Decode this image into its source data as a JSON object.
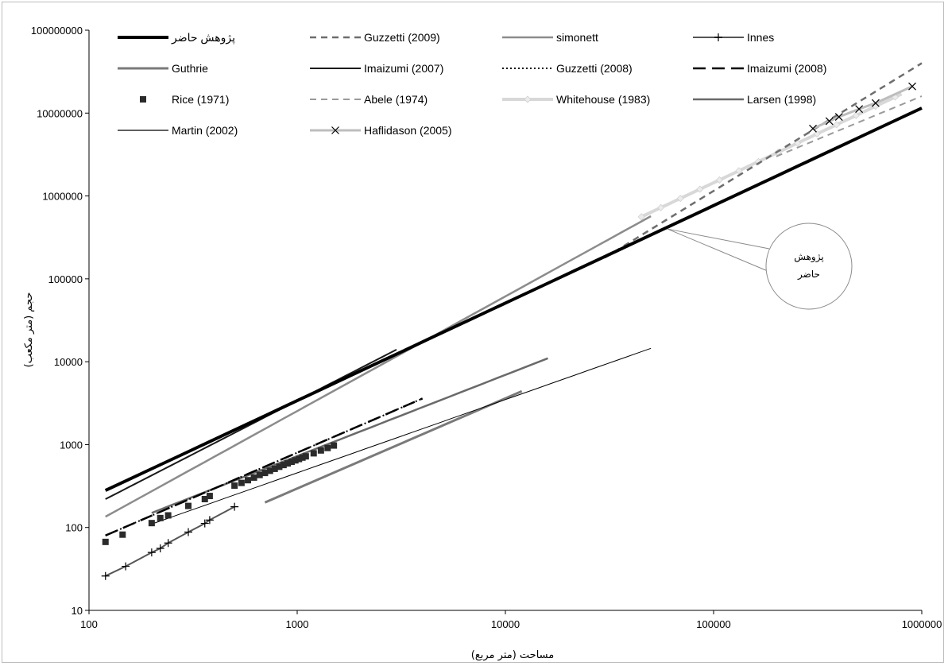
{
  "chart_data": {
    "type": "line",
    "x_scale": "log",
    "y_scale": "log",
    "xlim": [
      100,
      1000000
    ],
    "ylim": [
      10,
      100000000
    ],
    "xlabel": "مساحت (متر مربع)",
    "ylabel": "حجم (متر مکعب)",
    "x_ticks": [
      "100",
      "1000",
      "10000",
      "100000",
      "1000000"
    ],
    "y_ticks": [
      "10",
      "100",
      "1000",
      "10000",
      "100000",
      "1000000",
      "10000000",
      "100000000"
    ],
    "grid": false,
    "legend_position": "top",
    "annotation": {
      "text_line1": "پژوهش",
      "text_line2": "حاضر",
      "points_to": "پژوهش حاضر",
      "at": [
        60000,
        400000
      ]
    },
    "series": [
      {
        "name": "پژوهش حاضر",
        "color": "#000000",
        "style": "solid",
        "width": 4,
        "marker": "none",
        "x_range": [
          120,
          1000000
        ],
        "y_at_range": [
          280,
          11500000
        ]
      },
      {
        "name": "Guzzetti (2009)",
        "color": "#6e6e6e",
        "style": "dashed",
        "width": 2.5,
        "marker": "none",
        "x_range": [
          30000,
          1000000
        ],
        "y_at_range": [
          180000,
          40000000
        ]
      },
      {
        "name": "simonett",
        "color": "#8c8c8c",
        "style": "solid",
        "width": 2.5,
        "marker": "none",
        "x_range": [
          120,
          50000
        ],
        "y_at_range": [
          135,
          570000
        ]
      },
      {
        "name": "Innes",
        "color": "#555555",
        "style": "solid",
        "width": 2,
        "marker": "plus",
        "points": [
          [
            120,
            26
          ],
          [
            150,
            34
          ],
          [
            200,
            50
          ],
          [
            220,
            56
          ],
          [
            240,
            65
          ],
          [
            300,
            88
          ],
          [
            360,
            112
          ],
          [
            380,
            123
          ],
          [
            500,
            178
          ]
        ]
      },
      {
        "name": "Guthrie",
        "color": "#7a7a7a",
        "style": "solid",
        "width": 3,
        "marker": "none",
        "x_range": [
          700,
          12000
        ],
        "y_at_range": [
          200,
          4400
        ]
      },
      {
        "name": "Imaizumi (2007)",
        "color": "#1a1a1a",
        "style": "solid",
        "width": 2,
        "marker": "none",
        "x_range": [
          120,
          3000
        ],
        "y_at_range": [
          220,
          14000
        ]
      },
      {
        "name": "Guzzetti (2008)",
        "color": "#000000",
        "style": "dotted",
        "width": 2,
        "marker": "none",
        "x_range": [
          120,
          4000
        ],
        "y_at_range": [
          80,
          3600
        ]
      },
      {
        "name": "Imaizumi (2008)",
        "color": "#000000",
        "style": "longdash",
        "width": 2.5,
        "marker": "none",
        "x_range": [
          120,
          4000
        ],
        "y_at_range": [
          80,
          3600
        ]
      },
      {
        "name": "Rice (1971)",
        "color": "#2b2b2b",
        "style": "none",
        "width": 0,
        "marker": "square",
        "points": [
          [
            120,
            67
          ],
          [
            145,
            82
          ],
          [
            200,
            113
          ],
          [
            220,
            130
          ],
          [
            240,
            140
          ],
          [
            300,
            182
          ],
          [
            360,
            220
          ],
          [
            380,
            240
          ],
          [
            500,
            320
          ],
          [
            540,
            345
          ],
          [
            580,
            372
          ],
          [
            620,
            400
          ],
          [
            660,
            430
          ],
          [
            700,
            455
          ],
          [
            740,
            483
          ],
          [
            780,
            510
          ],
          [
            820,
            540
          ],
          [
            860,
            567
          ],
          [
            900,
            593
          ],
          [
            940,
            620
          ],
          [
            980,
            645
          ],
          [
            1020,
            670
          ],
          [
            1060,
            697
          ],
          [
            1100,
            722
          ],
          [
            1200,
            785
          ],
          [
            1300,
            850
          ],
          [
            1400,
            910
          ],
          [
            1500,
            975
          ]
        ]
      },
      {
        "name": "Abele (1974)",
        "color": "#9a9a9a",
        "style": "dashed",
        "width": 2,
        "marker": "none",
        "x_range": [
          200000,
          1000000
        ],
        "y_at_range": [
          3000000,
          16000000
        ]
      },
      {
        "name": "Whitehouse (1983)",
        "color": "#d8d8d8",
        "style": "solid",
        "width": 4,
        "marker": "diamond",
        "x_range": [
          45000,
          800000
        ],
        "y_at_range": [
          560000,
          17000000
        ]
      },
      {
        "name": "Larsen (1998)",
        "color": "#6a6a6a",
        "style": "solid",
        "width": 2.5,
        "marker": "none",
        "x_range": [
          200,
          16000
        ],
        "y_at_range": [
          150,
          11000
        ]
      },
      {
        "name": "Martin (2002)",
        "color": "#000000",
        "style": "solid",
        "width": 1,
        "marker": "none",
        "x_range": [
          200,
          50000
        ],
        "y_at_range": [
          110,
          14500
        ]
      },
      {
        "name": "Haflidason (2005)",
        "color": "#bdbdbd",
        "style": "solid",
        "width": 3,
        "marker": "x",
        "points": [
          [
            300000,
            6500000
          ],
          [
            360000,
            8000000
          ],
          [
            400000,
            9000000
          ],
          [
            500000,
            11200000
          ],
          [
            600000,
            13200000
          ],
          [
            900000,
            21000000
          ]
        ]
      }
    ]
  }
}
